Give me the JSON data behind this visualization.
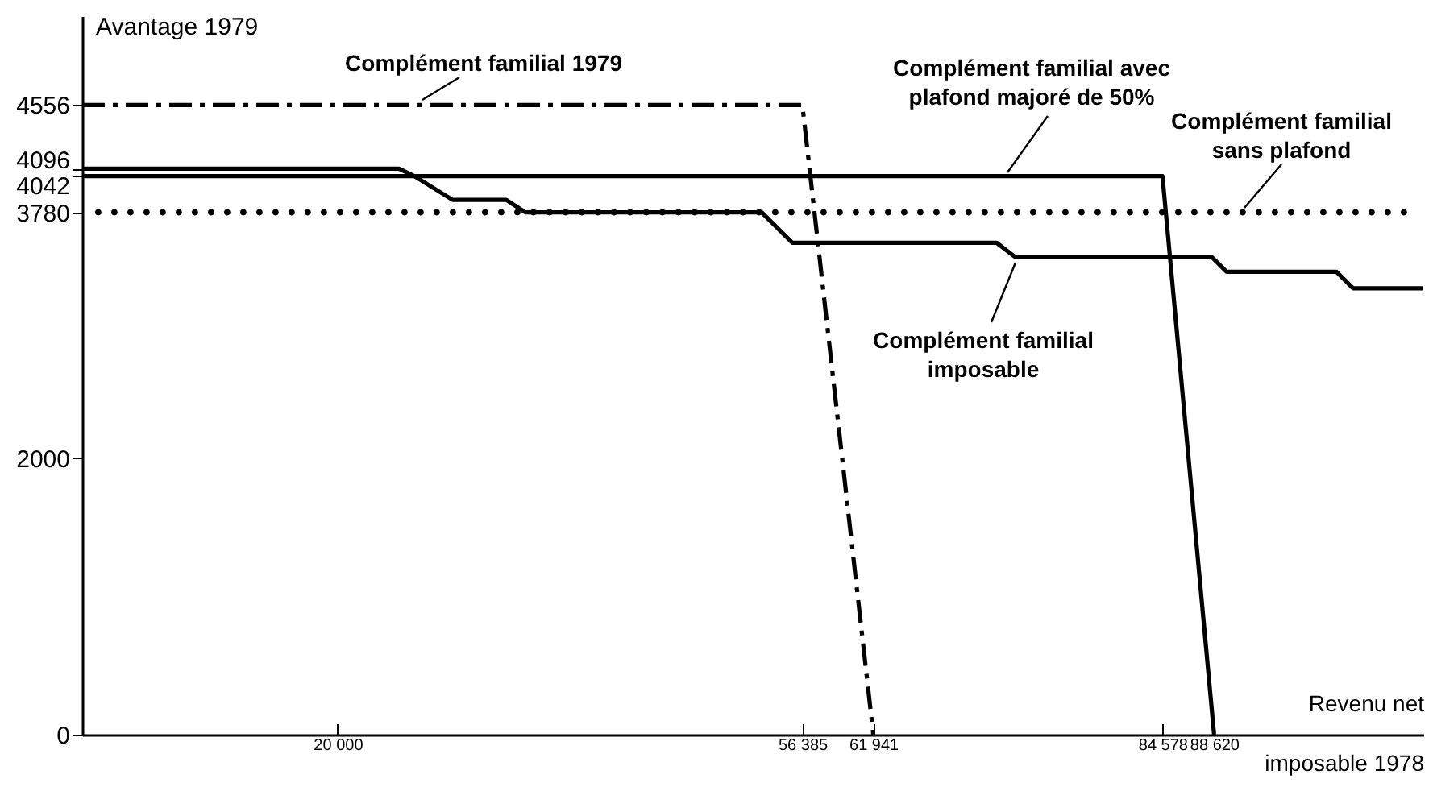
{
  "chart_data": {
    "type": "line",
    "xlabel": "Revenu net imposable 1978",
    "ylabel": "Avantage 1979",
    "xlim": [
      0,
      105000
    ],
    "xticks": [
      {
        "value": 20000,
        "label": "20 000"
      },
      {
        "value": 56385,
        "label": "56 385"
      },
      {
        "value": 61941,
        "label": "61 941"
      },
      {
        "value": 84578,
        "label": "84 578"
      },
      {
        "value": 88620,
        "label": "88 620"
      }
    ],
    "ylim": [
      0,
      5200
    ],
    "yticks": [
      0,
      2000,
      3780,
      4042,
      4096,
      4556
    ],
    "grid": false,
    "series": [
      {
        "name": "Complément familial 1979",
        "color": "#000000",
        "line_style": "dashed",
        "x": [
          0,
          56385,
          61941
        ],
        "values": [
          4556,
          4556,
          0
        ]
      },
      {
        "name": "Complément familial avec plafond majoré de 50%",
        "color": "#000000",
        "line_style": "solid",
        "x": [
          0,
          84578,
          88620
        ],
        "values": [
          4042,
          4042,
          0
        ]
      },
      {
        "name": "Complément familial sans plafond",
        "color": "#000000",
        "line_style": "dotted",
        "x": [
          0,
          104000
        ],
        "values": [
          3780,
          3780
        ]
      },
      {
        "name": "Complément familial imposable",
        "color": "#000000",
        "line_style": "solid",
        "x": [
          0,
          24800,
          26000,
          29000,
          33200,
          34700,
          53200,
          55600,
          71600,
          73000,
          88400,
          89600,
          98200,
          99500,
          105000
        ],
        "values": [
          4096,
          4096,
          4042,
          3870,
          3870,
          3780,
          3780,
          3560,
          3560,
          3460,
          3460,
          3350,
          3350,
          3230,
          3230
        ]
      }
    ]
  }
}
